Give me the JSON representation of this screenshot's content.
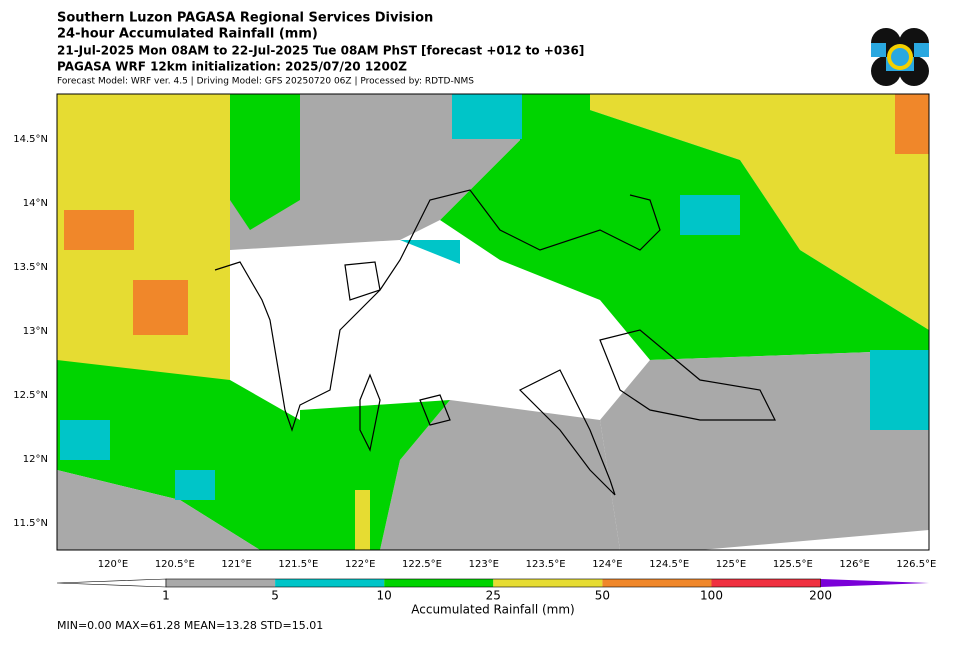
{
  "header": {
    "lines": [
      "Southern Luzon PAGASA Regional Services Division",
      "24-hour Accumulated Rainfall (mm)",
      "21-Jul-2025 Mon 08AM to 22-Jul-2025 Tue 08AM PhST [forecast +012 to +036]",
      "PAGASA WRF 12km initialization: 2025/07/20 1200Z",
      "Forecast Model: WRF ver. 4.5 | Driving Model: GFS 20250720 06Z | Processed by: RDTD-NMS"
    ]
  },
  "map": {
    "lat_labels": [
      "14.5°N",
      "14°N",
      "13.5°N",
      "13°N",
      "12.5°N",
      "12°N",
      "11.5°N"
    ],
    "lon_labels": [
      "120°E",
      "120.5°E",
      "121°E",
      "121.5°E",
      "122°E",
      "122.5°E",
      "123°E",
      "123.5°E",
      "124°E",
      "124.5°E",
      "125°E",
      "125.5°E",
      "126°E",
      "126.5°E"
    ]
  },
  "colorbar": {
    "ticks": [
      "1",
      "5",
      "10",
      "25",
      "50",
      "100",
      "200"
    ],
    "label": "Accumulated Rainfall (mm)",
    "colors": [
      "#a9a9a9",
      "#00c5c8",
      "#00d400",
      "#e6dc32",
      "#f0872a",
      "#f03040",
      "#7a00d8"
    ]
  },
  "stats": "MIN=0.00   MAX=61.28   MEAN=13.28   STD=15.01"
}
